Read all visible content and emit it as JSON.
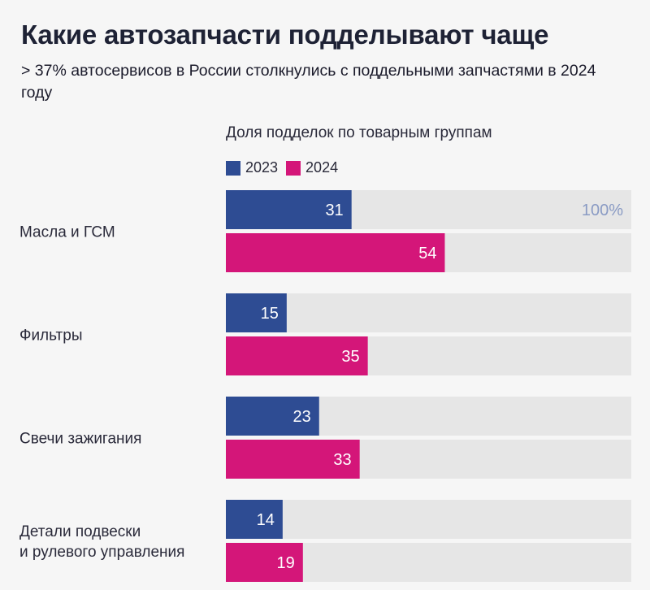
{
  "title": "Какие автозапчасти подделывают чаще",
  "subtitle": "> 37% автосервисов в России столкнулись с поддельными запчастями в 2024 году",
  "colors": {
    "series_2023": "#2e4c93",
    "series_2024": "#d41679",
    "track": "#e6e6e6",
    "max_label": "#8a9bc4"
  },
  "chart_data": {
    "type": "bar",
    "orientation": "horizontal",
    "title": "Доля подделок по товарным группам",
    "categories": [
      [
        "Масла и ГСМ"
      ],
      [
        "Фильтры"
      ],
      [
        "Свечи зажигания"
      ],
      [
        "Детали подвески",
        "и рулевого управления"
      ]
    ],
    "series": [
      {
        "name": "2023",
        "values": [
          31,
          15,
          23,
          14
        ]
      },
      {
        "name": "2024",
        "values": [
          54,
          35,
          33,
          19
        ]
      }
    ],
    "xlim": [
      0,
      100
    ],
    "max_label": "100%",
    "legend_position": "top-left"
  }
}
